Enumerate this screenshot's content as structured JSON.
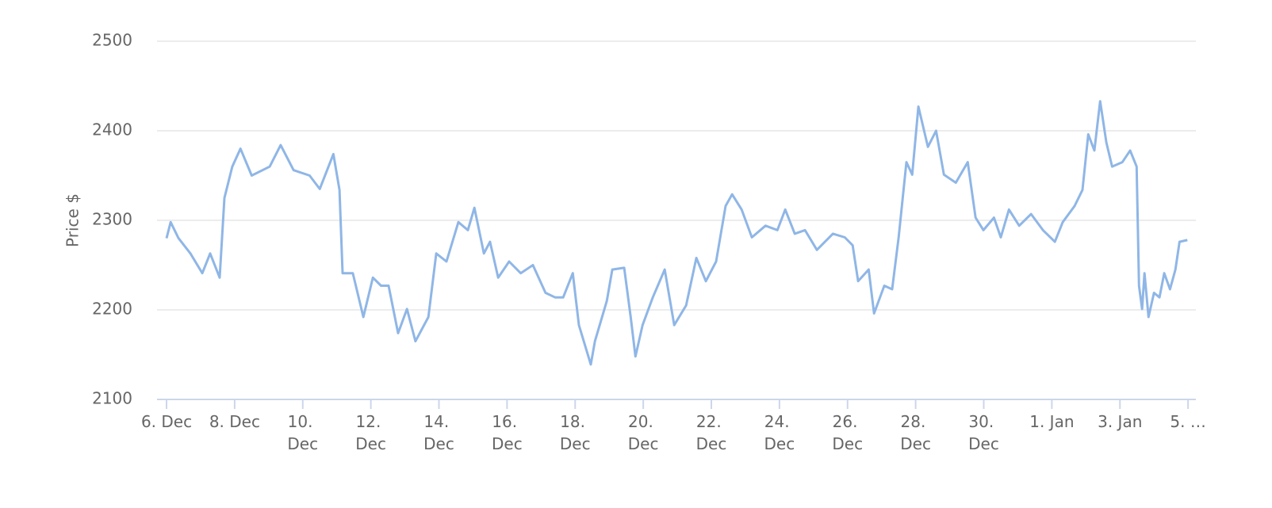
{
  "chart_data": {
    "type": "line",
    "y_label": "Price $",
    "x": [
      0,
      0.12,
      0.35,
      0.7,
      1.05,
      1.28,
      1.56,
      1.7,
      1.93,
      2.17,
      2.5,
      3.03,
      3.35,
      3.73,
      4.2,
      4.5,
      4.9,
      5.08,
      5.17,
      5.47,
      5.78,
      6.06,
      6.3,
      6.52,
      6.8,
      7.06,
      7.31,
      7.69,
      7.92,
      8.22,
      8.57,
      8.85,
      9.04,
      9.32,
      9.5,
      9.74,
      10.06,
      10.4,
      10.76,
      11.13,
      11.41,
      11.65,
      11.93,
      12.11,
      12.46,
      12.58,
      12.93,
      13.09,
      13.44,
      13.63,
      13.77,
      13.98,
      14.28,
      14.63,
      14.91,
      15.26,
      15.56,
      15.84,
      16.14,
      16.42,
      16.61,
      16.89,
      17.19,
      17.59,
      17.94,
      18.17,
      18.45,
      18.75,
      19.1,
      19.57,
      19.92,
      20.15,
      20.31,
      20.62,
      20.78,
      21.08,
      21.31,
      21.5,
      21.73,
      21.9,
      22.08,
      22.36,
      22.6,
      22.83,
      23.18,
      23.53,
      23.76,
      23.99,
      24.3,
      24.5,
      24.74,
      25.04,
      25.39,
      25.74,
      26.09,
      26.32,
      26.67,
      26.9,
      27.07,
      27.25,
      27.42,
      27.6,
      27.77,
      28.07,
      28.3,
      28.49,
      28.56,
      28.65,
      28.72,
      28.84,
      29.0,
      29.16,
      29.3,
      29.47,
      29.63,
      29.75,
      29.98
    ],
    "series": [
      {
        "name": "Price",
        "color": "#8fb6e6",
        "values": [
          2280,
          2298,
          2280,
          2263,
          2241,
          2263,
          2236,
          2325,
          2360,
          2380,
          2350,
          2360,
          2384,
          2356,
          2350,
          2335,
          2374,
          2334,
          2241,
          2241,
          2192,
          2236,
          2227,
          2227,
          2174,
          2201,
          2165,
          2192,
          2263,
          2254,
          2298,
          2289,
          2314,
          2263,
          2276,
          2236,
          2254,
          2241,
          2250,
          2219,
          2214,
          2214,
          2241,
          2183,
          2139,
          2165,
          2210,
          2245,
          2247,
          2192,
          2148,
          2183,
          2214,
          2245,
          2183,
          2205,
          2258,
          2232,
          2254,
          2316,
          2329,
          2312,
          2281,
          2294,
          2289,
          2312,
          2285,
          2289,
          2267,
          2285,
          2281,
          2272,
          2232,
          2245,
          2196,
          2227,
          2223,
          2281,
          2365,
          2351,
          2427,
          2382,
          2400,
          2351,
          2342,
          2365,
          2303,
          2289,
          2303,
          2281,
          2312,
          2294,
          2307,
          2289,
          2276,
          2298,
          2316,
          2334,
          2396,
          2378,
          2433,
          2387,
          2360,
          2365,
          2378,
          2360,
          2227,
          2201,
          2241,
          2192,
          2219,
          2214,
          2241,
          2223,
          2245,
          2276,
          2278
        ]
      }
    ],
    "xlim": [
      -0.28,
      30.23
    ],
    "xticks": [
      {
        "value": 0,
        "label": "6. Dec"
      },
      {
        "value": 2,
        "label": "8. Dec"
      },
      {
        "value": 4,
        "label": "10. Dec"
      },
      {
        "value": 6,
        "label": "12. Dec"
      },
      {
        "value": 8,
        "label": "14. Dec"
      },
      {
        "value": 10,
        "label": "16. Dec"
      },
      {
        "value": 12,
        "label": "18. Dec"
      },
      {
        "value": 14,
        "label": "20. Dec"
      },
      {
        "value": 16,
        "label": "22. Dec"
      },
      {
        "value": 18,
        "label": "24. Dec"
      },
      {
        "value": 20,
        "label": "26. Dec"
      },
      {
        "value": 22,
        "label": "28. Dec"
      },
      {
        "value": 24,
        "label": "30. Dec"
      },
      {
        "value": 26,
        "label": "1. Jan"
      },
      {
        "value": 28,
        "label": "3. Jan"
      },
      {
        "value": 30,
        "label": "5. …"
      }
    ],
    "ylim": [
      2100,
      2500
    ],
    "yticks": [
      2100,
      2200,
      2300,
      2400,
      2500
    ],
    "grid": true
  }
}
